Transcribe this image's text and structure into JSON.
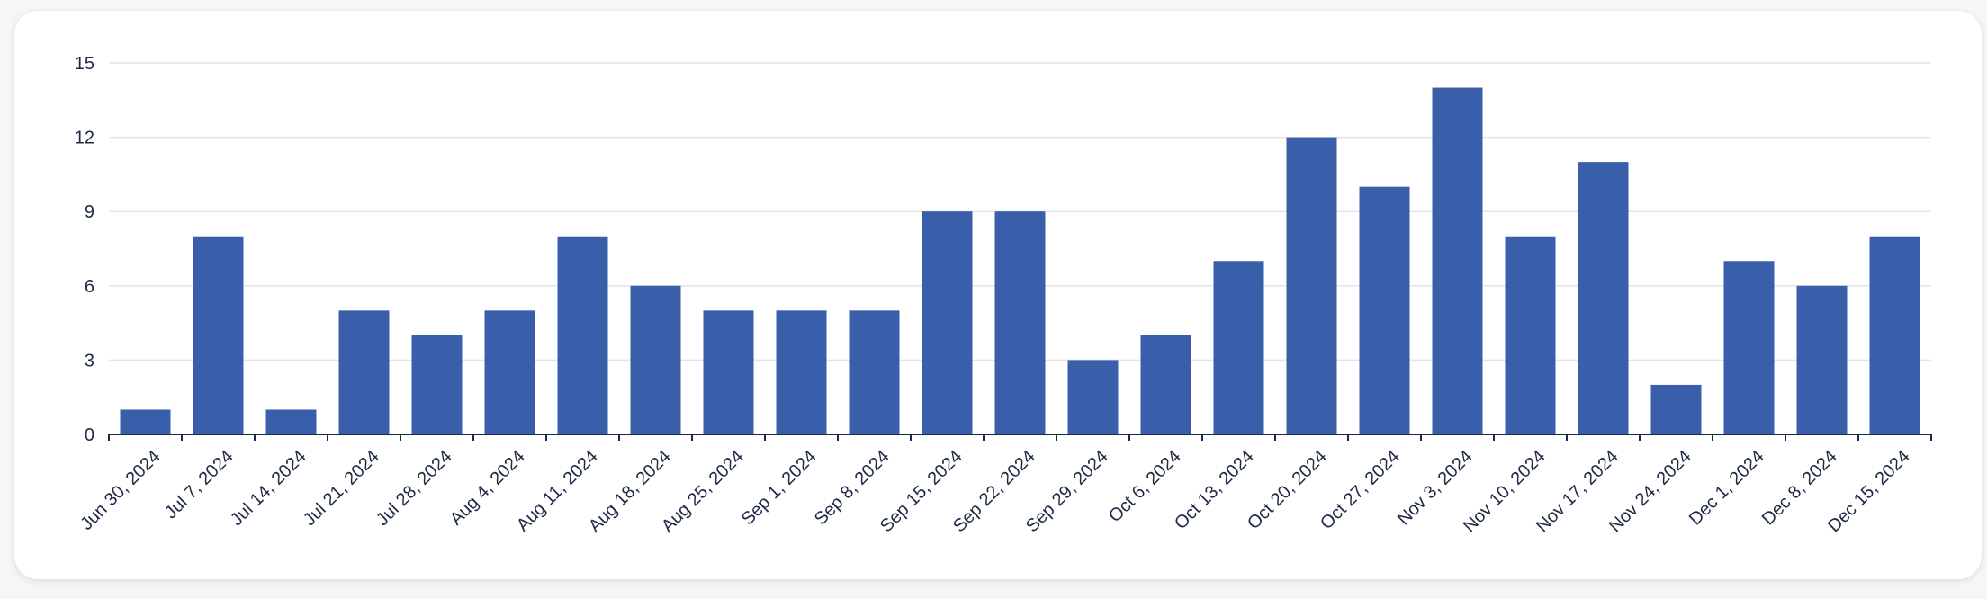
{
  "colors": {
    "bar": "#3a5faa",
    "grid": "#e2e4e8",
    "axis": "#1e2a44",
    "text": "#1e2a44"
  },
  "chart_data": {
    "type": "bar",
    "title": "",
    "xlabel": "",
    "ylabel": "",
    "ylim": [
      0,
      15
    ],
    "yticks": [
      "0",
      "3",
      "6",
      "9",
      "12",
      "15"
    ],
    "grid": true,
    "categories": [
      "Jun 30, 2024",
      "Jul 7, 2024",
      "Jul 14, 2024",
      "Jul 21, 2024",
      "Jul 28, 2024",
      "Aug 4, 2024",
      "Aug 11, 2024",
      "Aug 18, 2024",
      "Aug 25, 2024",
      "Sep 1, 2024",
      "Sep 8, 2024",
      "Sep 15, 2024",
      "Sep 22, 2024",
      "Sep 29, 2024",
      "Oct 6, 2024",
      "Oct 13, 2024",
      "Oct 20, 2024",
      "Oct 27, 2024",
      "Nov 3, 2024",
      "Nov 10, 2024",
      "Nov 17, 2024",
      "Nov 24, 2024",
      "Dec 1, 2024",
      "Dec 8, 2024",
      "Dec 15, 2024"
    ],
    "values": [
      1,
      8,
      1,
      5,
      4,
      5,
      8,
      6,
      5,
      5,
      5,
      9,
      9,
      3,
      4,
      7,
      12,
      10,
      14,
      8,
      11,
      2,
      7,
      6,
      8
    ]
  }
}
